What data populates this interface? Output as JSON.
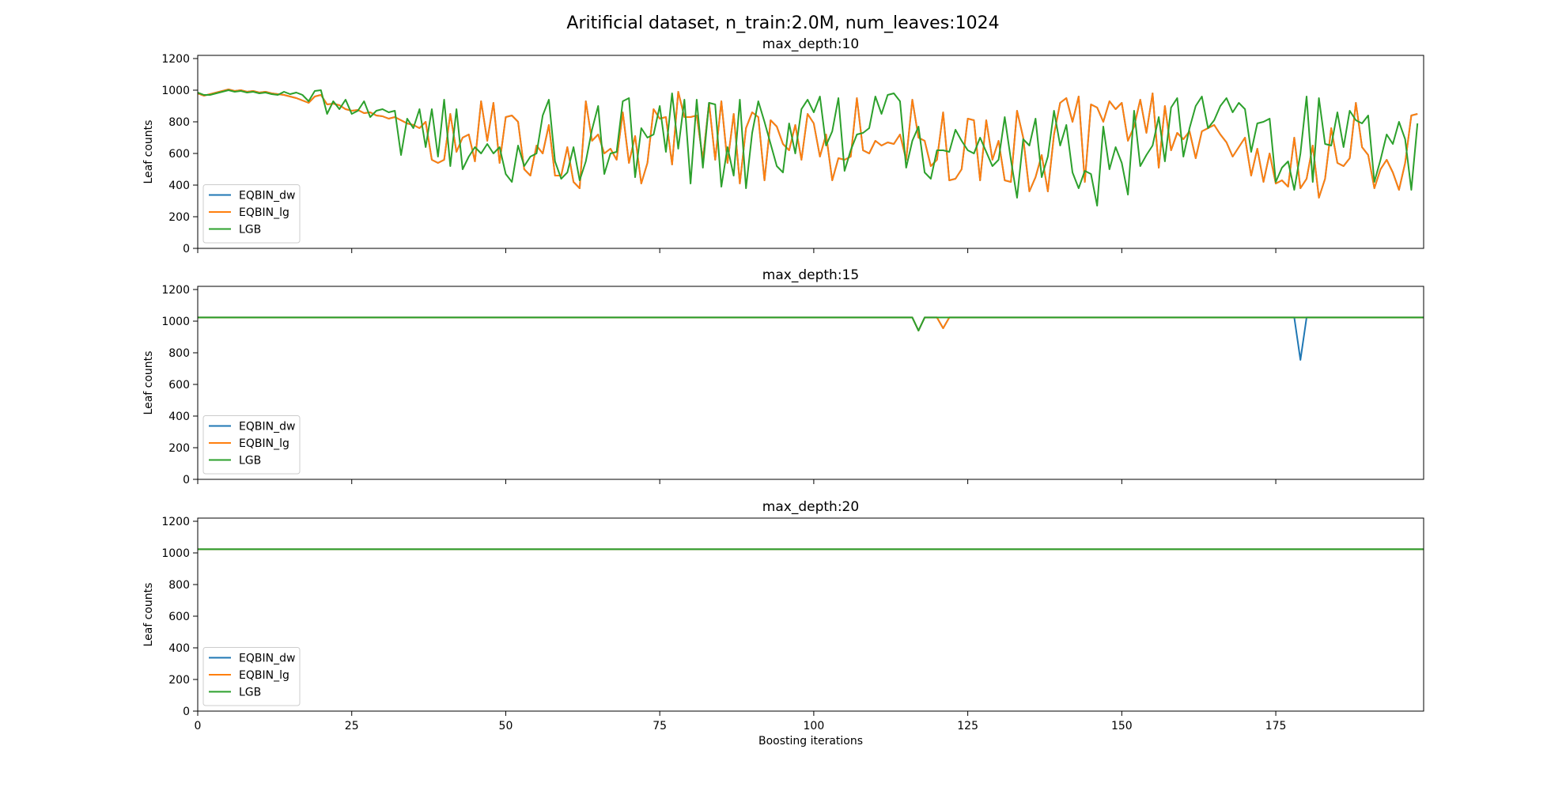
{
  "figure": {
    "suptitle": "Aritificial dataset, n_train:2.0M, num_leaves:1024"
  },
  "chart_data": [
    {
      "type": "line",
      "title": "max_depth:10",
      "xlabel": "",
      "ylabel": "Leaf counts",
      "xlim": [
        0,
        199
      ],
      "ylim": [
        0,
        1220
      ],
      "x_ticks": [
        0,
        25,
        50,
        75,
        100,
        125,
        150,
        175
      ],
      "y_ticks": [
        0,
        200,
        400,
        600,
        800,
        1000,
        1200
      ],
      "show_x_tick_labels": false,
      "grid": false,
      "legend": {
        "placement": "lower-left",
        "entries": [
          "EQBIN_dw",
          "EQBIN_lg",
          "LGB"
        ]
      },
      "series": [
        {
          "name": "EQBIN_dw",
          "color": "#1f77b4",
          "values": [
            980,
            965,
            975,
            985,
            995,
            1005,
            995,
            1000,
            990,
            995,
            985,
            990,
            980,
            975,
            970,
            960,
            950,
            935,
            920,
            960,
            970,
            910,
            915,
            905,
            880,
            870,
            875,
            855,
            860,
            840,
            835,
            820,
            830,
            810,
            790,
            780,
            760,
            800,
            560,
            540,
            560,
            850,
            610,
            700,
            720,
            550,
            930,
            680,
            920,
            540,
            830,
            840,
            800,
            500,
            460,
            650,
            600,
            780,
            460,
            460,
            640,
            420,
            380,
            930,
            680,
            720,
            600,
            630,
            560,
            860,
            540,
            710,
            410,
            540,
            880,
            820,
            830,
            530,
            990,
            830,
            830,
            840,
            560,
            920,
            560,
            930,
            540,
            850,
            410,
            760,
            860,
            830,
            430,
            810,
            770,
            660,
            620,
            780,
            560,
            850,
            790,
            580,
            720,
            430,
            570,
            560,
            580,
            950,
            620,
            600,
            680,
            650,
            670,
            660,
            720,
            560,
            940,
            700,
            680,
            520,
            560,
            860,
            430,
            440,
            500,
            820,
            810,
            430,
            810,
            560,
            680,
            430,
            420,
            870,
            700,
            360,
            450,
            590,
            360,
            720,
            920,
            950,
            800,
            960,
            420,
            910,
            890,
            800,
            930,
            880,
            920,
            680,
            770,
            940,
            730,
            980,
            510,
            900,
            620,
            730,
            690,
            740,
            570,
            740,
            760,
            780,
            720,
            670,
            580,
            640,
            700,
            460,
            630,
            420,
            600,
            410,
            430,
            390,
            700,
            380,
            440,
            650,
            320,
            440,
            760,
            540,
            520,
            570,
            920,
            640,
            590,
            380,
            500,
            560,
            480,
            370,
            540,
            840,
            850
          ]
        },
        {
          "name": "EQBIN_lg",
          "color": "#ff7f0e",
          "values": [
            980,
            965,
            975,
            985,
            995,
            1005,
            995,
            1000,
            990,
            995,
            985,
            990,
            980,
            975,
            970,
            960,
            950,
            935,
            920,
            960,
            970,
            910,
            915,
            905,
            880,
            870,
            875,
            855,
            860,
            840,
            835,
            820,
            830,
            810,
            790,
            780,
            760,
            800,
            560,
            540,
            560,
            850,
            610,
            700,
            720,
            550,
            930,
            680,
            920,
            540,
            830,
            840,
            800,
            500,
            460,
            650,
            600,
            780,
            460,
            460,
            640,
            420,
            380,
            930,
            680,
            720,
            600,
            630,
            560,
            860,
            540,
            710,
            410,
            540,
            880,
            820,
            830,
            530,
            990,
            830,
            830,
            840,
            560,
            920,
            560,
            930,
            540,
            850,
            410,
            760,
            860,
            830,
            430,
            810,
            770,
            660,
            620,
            780,
            560,
            850,
            790,
            580,
            720,
            430,
            570,
            560,
            580,
            950,
            620,
            600,
            680,
            650,
            670,
            660,
            720,
            560,
            940,
            700,
            680,
            520,
            560,
            860,
            430,
            440,
            500,
            820,
            810,
            430,
            810,
            560,
            680,
            430,
            420,
            870,
            700,
            360,
            450,
            590,
            360,
            720,
            920,
            950,
            800,
            960,
            420,
            910,
            890,
            800,
            930,
            880,
            920,
            680,
            770,
            940,
            730,
            980,
            510,
            900,
            620,
            730,
            690,
            740,
            570,
            740,
            760,
            780,
            720,
            670,
            580,
            640,
            700,
            460,
            630,
            420,
            600,
            410,
            430,
            390,
            700,
            380,
            440,
            650,
            320,
            440,
            760,
            540,
            520,
            570,
            920,
            640,
            590,
            380,
            500,
            560,
            480,
            370,
            540,
            840,
            850
          ]
        },
        {
          "name": "LGB",
          "color": "#2ca02c",
          "values": [
            985,
            970,
            970,
            980,
            990,
            1000,
            990,
            995,
            985,
            990,
            980,
            985,
            975,
            970,
            990,
            975,
            985,
            970,
            930,
            995,
            1000,
            850,
            930,
            880,
            940,
            850,
            870,
            930,
            830,
            870,
            880,
            860,
            870,
            590,
            820,
            760,
            880,
            640,
            880,
            580,
            940,
            520,
            880,
            500,
            580,
            640,
            600,
            660,
            600,
            640,
            470,
            420,
            650,
            520,
            580,
            600,
            840,
            940,
            550,
            440,
            480,
            640,
            430,
            550,
            750,
            900,
            470,
            600,
            610,
            930,
            950,
            450,
            760,
            700,
            720,
            900,
            610,
            980,
            630,
            940,
            410,
            940,
            510,
            920,
            910,
            390,
            640,
            460,
            940,
            380,
            730,
            930,
            800,
            660,
            520,
            480,
            790,
            600,
            880,
            940,
            860,
            960,
            650,
            740,
            950,
            490,
            620,
            720,
            730,
            760,
            960,
            850,
            970,
            980,
            930,
            510,
            680,
            770,
            480,
            440,
            620,
            620,
            610,
            750,
            680,
            620,
            600,
            700,
            610,
            520,
            560,
            830,
            560,
            320,
            690,
            650,
            820,
            450,
            580,
            870,
            650,
            780,
            480,
            380,
            490,
            470,
            270,
            770,
            500,
            640,
            540,
            340,
            870,
            520,
            590,
            650,
            830,
            550,
            890,
            950,
            580,
            760,
            900,
            960,
            760,
            810,
            900,
            950,
            860,
            920,
            880,
            610,
            790,
            800,
            820,
            420,
            510,
            550,
            370,
            600,
            960,
            420,
            950,
            660,
            650,
            860,
            640,
            870,
            810,
            790,
            840,
            420,
            560,
            720,
            660,
            800,
            690,
            370,
            790
          ]
        }
      ]
    },
    {
      "type": "line",
      "title": "max_depth:15",
      "xlabel": "",
      "ylabel": "Leaf counts",
      "xlim": [
        0,
        199
      ],
      "ylim": [
        0,
        1220
      ],
      "x_ticks": [
        0,
        25,
        50,
        75,
        100,
        125,
        150,
        175
      ],
      "y_ticks": [
        0,
        200,
        400,
        600,
        800,
        1000,
        1200
      ],
      "show_x_tick_labels": false,
      "grid": false,
      "legend": {
        "placement": "lower-left",
        "entries": [
          "EQBIN_dw",
          "EQBIN_lg",
          "LGB"
        ]
      },
      "series": [
        {
          "name": "EQBIN_dw",
          "color": "#1f77b4",
          "base": 1023,
          "dips": [
            [
              117,
              940
            ],
            [
              121,
              955
            ],
            [
              179,
              755
            ]
          ]
        },
        {
          "name": "EQBIN_lg",
          "color": "#ff7f0e",
          "base": 1023,
          "dips": [
            [
              117,
              940
            ],
            [
              121,
              955
            ]
          ]
        },
        {
          "name": "LGB",
          "color": "#2ca02c",
          "base": 1023,
          "dips": [
            [
              117,
              940
            ]
          ]
        }
      ]
    },
    {
      "type": "line",
      "title": "max_depth:20",
      "xlabel": "Boosting iterations",
      "ylabel": "Leaf counts",
      "xlim": [
        0,
        199
      ],
      "ylim": [
        0,
        1220
      ],
      "x_ticks": [
        0,
        25,
        50,
        75,
        100,
        125,
        150,
        175
      ],
      "y_ticks": [
        0,
        200,
        400,
        600,
        800,
        1000,
        1200
      ],
      "show_x_tick_labels": true,
      "grid": false,
      "legend": {
        "placement": "lower-left",
        "entries": [
          "EQBIN_dw",
          "EQBIN_lg",
          "LGB"
        ]
      },
      "series": [
        {
          "name": "EQBIN_dw",
          "color": "#1f77b4",
          "base": 1023,
          "dips": []
        },
        {
          "name": "EQBIN_lg",
          "color": "#ff7f0e",
          "base": 1023,
          "dips": []
        },
        {
          "name": "LGB",
          "color": "#2ca02c",
          "base": 1023,
          "dips": []
        }
      ]
    }
  ]
}
